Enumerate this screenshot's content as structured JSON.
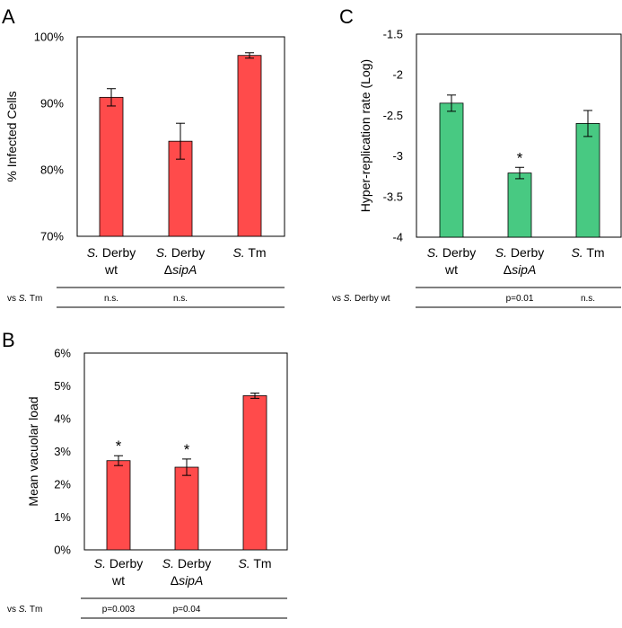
{
  "figure_panels": [
    "A",
    "B",
    "C"
  ],
  "chart_data": [
    {
      "panel": "A",
      "type": "bar",
      "title": "",
      "ylabel": "% Infected Cells",
      "xlabel": "",
      "ylim": [
        70,
        100
      ],
      "yticks": [
        70,
        80,
        90,
        100
      ],
      "ytick_labels": [
        "70%",
        "80%",
        "90%",
        "100%"
      ],
      "categories": [
        {
          "species": "S.",
          "line1": " Derby",
          "line2_prefix": "",
          "line2_italic": "",
          "line2": "wt"
        },
        {
          "species": "S.",
          "line1": " Derby",
          "line2_prefix": "Δ",
          "line2_italic": "sipA",
          "line2": ""
        },
        {
          "species": "S.",
          "line1": " Tm",
          "line2_prefix": "",
          "line2_italic": "",
          "line2": ""
        }
      ],
      "values": [
        90.9,
        84.3,
        97.2
      ],
      "errors": [
        1.3,
        2.7,
        0.4
      ],
      "significance": [
        "",
        "",
        ""
      ],
      "bar_color": "#FF4B4B",
      "comparison_label": {
        "prefix": "vs ",
        "species": "S.",
        "rest": " Tm"
      },
      "comparison_values": [
        "n.s.",
        "n.s.",
        ""
      ]
    },
    {
      "panel": "B",
      "type": "bar",
      "title": "",
      "ylabel": "Mean vacuolar load",
      "xlabel": "",
      "ylim": [
        0,
        6
      ],
      "yticks": [
        0,
        1,
        2,
        3,
        4,
        5,
        6
      ],
      "ytick_labels": [
        "0%",
        "1%",
        "2%",
        "3%",
        "4%",
        "5%",
        "6%"
      ],
      "categories": [
        {
          "species": "S.",
          "line1": " Derby",
          "line2_prefix": "",
          "line2_italic": "",
          "line2": "wt"
        },
        {
          "species": "S.",
          "line1": " Derby",
          "line2_prefix": "Δ",
          "line2_italic": "sipA",
          "line2": ""
        },
        {
          "species": "S.",
          "line1": " Tm",
          "line2_prefix": "",
          "line2_italic": "",
          "line2": ""
        }
      ],
      "values": [
        2.72,
        2.52,
        4.7
      ],
      "errors": [
        0.15,
        0.25,
        0.08
      ],
      "significance": [
        "*",
        "*",
        ""
      ],
      "bar_color": "#FF4B4B",
      "comparison_label": {
        "prefix": "vs ",
        "species": "S.",
        "rest": " Tm"
      },
      "comparison_values": [
        "p=0.003",
        "p=0.04",
        ""
      ]
    },
    {
      "panel": "C",
      "type": "bar",
      "title": "",
      "ylabel": "Hyper-replication rate (Log)",
      "xlabel": "",
      "ylim": [
        -4,
        -1.5
      ],
      "yticks": [
        -4,
        -3.5,
        -3,
        -2.5,
        -2,
        -1.5
      ],
      "ytick_labels": [
        "-4",
        "-3.5",
        "-3",
        "-2.5",
        "-2",
        "-1.5"
      ],
      "categories": [
        {
          "species": "S.",
          "line1": " Derby",
          "line2_prefix": "",
          "line2_italic": "",
          "line2": "wt"
        },
        {
          "species": "S.",
          "line1": " Derby",
          "line2_prefix": "Δ",
          "line2_italic": "sipA",
          "line2": ""
        },
        {
          "species": "S.",
          "line1": " Tm",
          "line2_prefix": "",
          "line2_italic": "",
          "line2": ""
        }
      ],
      "values": [
        -2.35,
        -3.21,
        -2.6
      ],
      "errors": [
        0.1,
        0.07,
        0.16
      ],
      "significance": [
        "",
        "*",
        ""
      ],
      "bar_color": "#48C982",
      "comparison_label": {
        "prefix": "vs ",
        "species": "S.",
        "rest": " Derby wt"
      },
      "comparison_values": [
        "",
        "p=0.01",
        "n.s."
      ]
    }
  ]
}
